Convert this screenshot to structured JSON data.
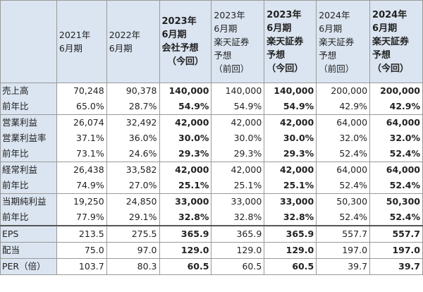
{
  "columns": [
    {
      "lines": [
        "2021年",
        "6月期"
      ]
    },
    {
      "lines": [
        "2022年",
        "6月期"
      ]
    },
    {
      "lines": [
        "2023年",
        "6月期",
        "会社予想",
        "（今回）"
      ]
    },
    {
      "lines": [
        "2023年",
        "6月期",
        "楽天証券",
        "予想",
        "（前回）"
      ]
    },
    {
      "lines": [
        "2023年",
        "6月期",
        "楽天証券",
        "予想",
        "（今回）"
      ]
    },
    {
      "lines": [
        "2024年",
        "6月期",
        "楽天証券",
        "予想",
        "（前回）"
      ]
    },
    {
      "lines": [
        "2024年",
        "6月期",
        "楽天証券",
        "予想",
        "（今回）"
      ]
    }
  ],
  "rows": [
    {
      "label": "売上高",
      "values": [
        "70,248",
        "90,378",
        "140,000",
        "140,000",
        "140,000",
        "200,000",
        "200,000"
      ]
    },
    {
      "label": "前年比",
      "values": [
        "65.0%",
        "28.7%",
        "54.9%",
        "54.9%",
        "54.9%",
        "42.9%",
        "42.9%"
      ]
    },
    {
      "label": "営業利益",
      "values": [
        "26,074",
        "32,492",
        "42,000",
        "42,000",
        "42,000",
        "64,000",
        "64,000"
      ]
    },
    {
      "label": "営業利益率",
      "values": [
        "37.1%",
        "36.0%",
        "30.0%",
        "30.0%",
        "30.0%",
        "32.0%",
        "32.0%"
      ]
    },
    {
      "label": "前年比",
      "values": [
        "73.1%",
        "24.6%",
        "29.3%",
        "29.3%",
        "29.3%",
        "52.4%",
        "52.4%"
      ]
    },
    {
      "label": "経常利益",
      "values": [
        "26,438",
        "33,582",
        "42,000",
        "42,000",
        "42,000",
        "64,000",
        "64,000"
      ]
    },
    {
      "label": "前年比",
      "values": [
        "74.9%",
        "27.0%",
        "25.1%",
        "25.1%",
        "25.1%",
        "52.4%",
        "52.4%"
      ]
    },
    {
      "label": "当期純利益",
      "values": [
        "19,250",
        "24,850",
        "33,000",
        "33,000",
        "33,000",
        "50,300",
        "50,300"
      ]
    },
    {
      "label": "前年比",
      "values": [
        "77.9%",
        "29.1%",
        "32.8%",
        "32.8%",
        "32.8%",
        "52.4%",
        "52.4%"
      ]
    },
    {
      "label": "EPS",
      "values": [
        "213.5",
        "275.5",
        "365.9",
        "365.9",
        "365.9",
        "557.7",
        "557.7"
      ]
    },
    {
      "label": "配当",
      "values": [
        "75.0",
        "97.0",
        "129.0",
        "129.0",
        "129.0",
        "197.0",
        "197.0"
      ]
    },
    {
      "label": "PER（倍）",
      "values": [
        "103.7",
        "80.3",
        "60.5",
        "60.5",
        "60.5",
        "39.7",
        "39.7"
      ]
    }
  ]
}
